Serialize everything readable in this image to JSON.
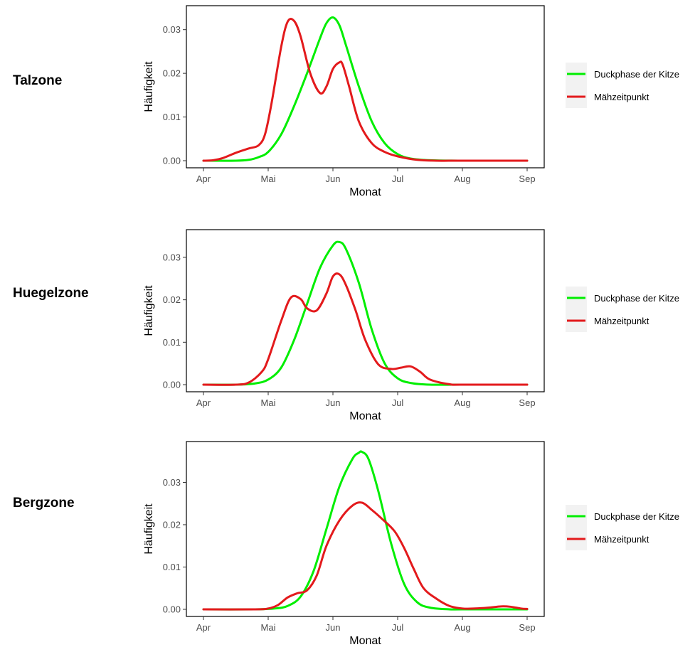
{
  "chart_data": [
    {
      "type": "line",
      "panel_label": "Talzone",
      "xlabel": "Monat",
      "ylabel": "Häufigkeit",
      "x_ticks": [
        "Apr",
        "Mai",
        "Jun",
        "Jul",
        "Aug",
        "Sep"
      ],
      "ylim": [
        0,
        0.034
      ],
      "y_ticks": [
        "0.00",
        "0.01",
        "0.02",
        "0.03"
      ],
      "y_tick_values": [
        0,
        0.01,
        0.02,
        0.03
      ],
      "grid": false,
      "legend_position": "right",
      "series": [
        {
          "name": "Duckphase der Kitze",
          "color": "#00ee00",
          "x": [
            0,
            0.5,
            0.7,
            0.85,
            1.0,
            1.2,
            1.4,
            1.6,
            1.8,
            1.9,
            2.0,
            2.1,
            2.2,
            2.4,
            2.6,
            2.8,
            3.0,
            3.2,
            3.5,
            4.0,
            5.0
          ],
          "y": [
            0,
            0,
            0.0002,
            0.0008,
            0.002,
            0.006,
            0.0125,
            0.02,
            0.028,
            0.0315,
            0.0328,
            0.031,
            0.0265,
            0.017,
            0.009,
            0.004,
            0.0015,
            0.0005,
            0.0001,
            0,
            0
          ]
        },
        {
          "name": "Mähzeitpunkt",
          "color": "#e31a1c",
          "x": [
            0,
            0.15,
            0.3,
            0.5,
            0.7,
            0.85,
            0.95,
            1.05,
            1.2,
            1.3,
            1.4,
            1.5,
            1.65,
            1.8,
            1.9,
            2.0,
            2.1,
            2.15,
            2.25,
            2.4,
            2.6,
            2.8,
            3.0,
            3.3,
            3.6,
            4.0,
            5.0
          ],
          "y": [
            0,
            0.0001,
            0.0006,
            0.0018,
            0.0028,
            0.0035,
            0.006,
            0.013,
            0.026,
            0.0318,
            0.032,
            0.0285,
            0.02,
            0.0155,
            0.017,
            0.021,
            0.0225,
            0.022,
            0.017,
            0.009,
            0.004,
            0.002,
            0.001,
            0.0002,
            0,
            0,
            0
          ]
        }
      ]
    },
    {
      "type": "line",
      "panel_label": "Huegelzone",
      "xlabel": "Monat",
      "ylabel": "Häufigkeit",
      "x_ticks": [
        "Apr",
        "Mai",
        "Jun",
        "Jul",
        "Aug",
        "Sep"
      ],
      "ylim": [
        0,
        0.035
      ],
      "y_ticks": [
        "0.00",
        "0.01",
        "0.02",
        "0.03"
      ],
      "y_tick_values": [
        0,
        0.01,
        0.02,
        0.03
      ],
      "grid": false,
      "legend_position": "right",
      "series": [
        {
          "name": "Duckphase der Kitze",
          "color": "#00ee00",
          "x": [
            0,
            0.5,
            0.8,
            1.0,
            1.2,
            1.4,
            1.6,
            1.8,
            2.0,
            2.1,
            2.2,
            2.4,
            2.6,
            2.8,
            3.0,
            3.2,
            3.5,
            4.0,
            5.0
          ],
          "y": [
            0,
            0,
            0.0003,
            0.0012,
            0.004,
            0.0105,
            0.019,
            0.0275,
            0.0328,
            0.0336,
            0.032,
            0.024,
            0.013,
            0.005,
            0.0015,
            0.0004,
            0,
            0,
            0
          ]
        },
        {
          "name": "Mähzeitpunkt",
          "color": "#e31a1c",
          "x": [
            0,
            0.5,
            0.7,
            0.9,
            1.0,
            1.2,
            1.35,
            1.5,
            1.6,
            1.75,
            1.9,
            2.0,
            2.1,
            2.2,
            2.35,
            2.5,
            2.7,
            2.9,
            3.05,
            3.2,
            3.35,
            3.5,
            3.8,
            4.0,
            5.0
          ],
          "y": [
            0,
            0,
            0.0005,
            0.003,
            0.006,
            0.015,
            0.0205,
            0.0202,
            0.018,
            0.0175,
            0.0215,
            0.0255,
            0.026,
            0.0235,
            0.0175,
            0.0105,
            0.0048,
            0.0037,
            0.004,
            0.0043,
            0.003,
            0.0012,
            0.0001,
            0,
            0
          ]
        }
      ]
    },
    {
      "type": "line",
      "panel_label": "Bergzone",
      "xlabel": "Monat",
      "ylabel": "Häufigkeit",
      "x_ticks": [
        "Apr",
        "Mai",
        "Jun",
        "Jul",
        "Aug",
        "Sep"
      ],
      "ylim": [
        0,
        0.038
      ],
      "y_ticks": [
        "0.00",
        "0.01",
        "0.02",
        "0.03"
      ],
      "y_tick_values": [
        0,
        0.01,
        0.02,
        0.03
      ],
      "grid": false,
      "legend_position": "right",
      "series": [
        {
          "name": "Duckphase der Kitze",
          "color": "#00ee00",
          "x": [
            0,
            0.8,
            1.1,
            1.3,
            1.5,
            1.7,
            1.9,
            2.1,
            2.3,
            2.4,
            2.45,
            2.55,
            2.7,
            2.9,
            3.1,
            3.3,
            3.5,
            3.8,
            4.0,
            5.0
          ],
          "y": [
            0,
            0,
            0.0002,
            0.0008,
            0.003,
            0.009,
            0.019,
            0.029,
            0.0355,
            0.037,
            0.0372,
            0.0355,
            0.028,
            0.0155,
            0.006,
            0.0017,
            0.0004,
            0,
            0,
            0
          ]
        },
        {
          "name": "Mähzeitpunkt",
          "color": "#e31a1c",
          "x": [
            0,
            0.8,
            1.0,
            1.15,
            1.3,
            1.45,
            1.6,
            1.75,
            1.9,
            2.1,
            2.3,
            2.45,
            2.6,
            2.75,
            2.95,
            3.1,
            3.25,
            3.4,
            3.6,
            3.8,
            4.0,
            4.2,
            4.4,
            4.6,
            4.75,
            4.9,
            5.0
          ],
          "y": [
            0,
            0,
            0.0002,
            0.001,
            0.0028,
            0.0038,
            0.0045,
            0.008,
            0.015,
            0.021,
            0.0245,
            0.0252,
            0.0235,
            0.0215,
            0.0185,
            0.0145,
            0.0095,
            0.005,
            0.0025,
            0.0008,
            0.0002,
            0.0002,
            0.0004,
            0.0007,
            0.0006,
            0.0002,
            0.0001
          ]
        }
      ]
    }
  ]
}
